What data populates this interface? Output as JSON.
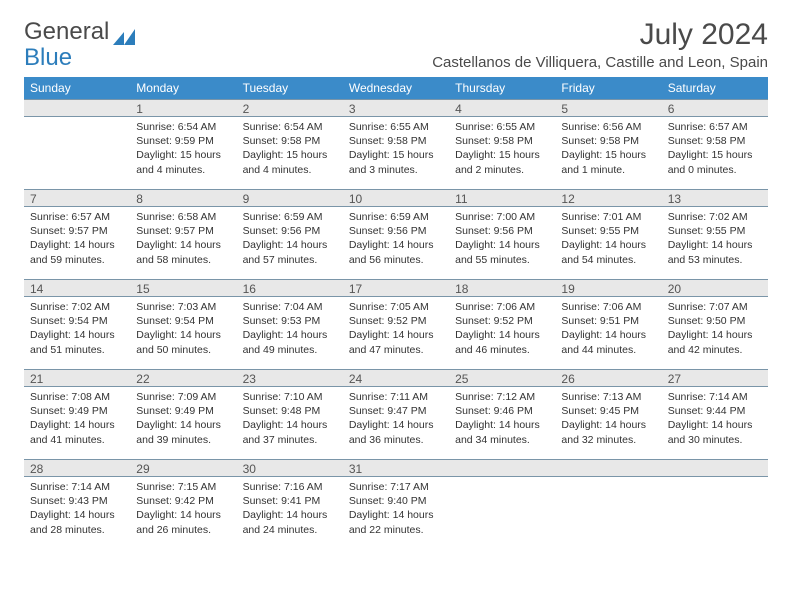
{
  "logo": {
    "part1": "General",
    "part2": "Blue"
  },
  "header": {
    "month_title": "July 2024",
    "location": "Castellanos de Villiquera, Castille and Leon, Spain"
  },
  "colors": {
    "header_bg": "#3b8bc9",
    "header_text": "#ffffff",
    "daynum_bg": "#e8e8e8",
    "border": "#7a95a8",
    "text": "#333333",
    "logo_gray": "#4a4a4a",
    "logo_blue": "#2c7dbb"
  },
  "day_names": [
    "Sunday",
    "Monday",
    "Tuesday",
    "Wednesday",
    "Thursday",
    "Friday",
    "Saturday"
  ],
  "weeks": [
    [
      {
        "n": "",
        "lines": []
      },
      {
        "n": "1",
        "lines": [
          "Sunrise: 6:54 AM",
          "Sunset: 9:59 PM",
          "Daylight: 15 hours and 4 minutes."
        ]
      },
      {
        "n": "2",
        "lines": [
          "Sunrise: 6:54 AM",
          "Sunset: 9:58 PM",
          "Daylight: 15 hours and 4 minutes."
        ]
      },
      {
        "n": "3",
        "lines": [
          "Sunrise: 6:55 AM",
          "Sunset: 9:58 PM",
          "Daylight: 15 hours and 3 minutes."
        ]
      },
      {
        "n": "4",
        "lines": [
          "Sunrise: 6:55 AM",
          "Sunset: 9:58 PM",
          "Daylight: 15 hours and 2 minutes."
        ]
      },
      {
        "n": "5",
        "lines": [
          "Sunrise: 6:56 AM",
          "Sunset: 9:58 PM",
          "Daylight: 15 hours and 1 minute."
        ]
      },
      {
        "n": "6",
        "lines": [
          "Sunrise: 6:57 AM",
          "Sunset: 9:58 PM",
          "Daylight: 15 hours and 0 minutes."
        ]
      }
    ],
    [
      {
        "n": "7",
        "lines": [
          "Sunrise: 6:57 AM",
          "Sunset: 9:57 PM",
          "Daylight: 14 hours and 59 minutes."
        ]
      },
      {
        "n": "8",
        "lines": [
          "Sunrise: 6:58 AM",
          "Sunset: 9:57 PM",
          "Daylight: 14 hours and 58 minutes."
        ]
      },
      {
        "n": "9",
        "lines": [
          "Sunrise: 6:59 AM",
          "Sunset: 9:56 PM",
          "Daylight: 14 hours and 57 minutes."
        ]
      },
      {
        "n": "10",
        "lines": [
          "Sunrise: 6:59 AM",
          "Sunset: 9:56 PM",
          "Daylight: 14 hours and 56 minutes."
        ]
      },
      {
        "n": "11",
        "lines": [
          "Sunrise: 7:00 AM",
          "Sunset: 9:56 PM",
          "Daylight: 14 hours and 55 minutes."
        ]
      },
      {
        "n": "12",
        "lines": [
          "Sunrise: 7:01 AM",
          "Sunset: 9:55 PM",
          "Daylight: 14 hours and 54 minutes."
        ]
      },
      {
        "n": "13",
        "lines": [
          "Sunrise: 7:02 AM",
          "Sunset: 9:55 PM",
          "Daylight: 14 hours and 53 minutes."
        ]
      }
    ],
    [
      {
        "n": "14",
        "lines": [
          "Sunrise: 7:02 AM",
          "Sunset: 9:54 PM",
          "Daylight: 14 hours and 51 minutes."
        ]
      },
      {
        "n": "15",
        "lines": [
          "Sunrise: 7:03 AM",
          "Sunset: 9:54 PM",
          "Daylight: 14 hours and 50 minutes."
        ]
      },
      {
        "n": "16",
        "lines": [
          "Sunrise: 7:04 AM",
          "Sunset: 9:53 PM",
          "Daylight: 14 hours and 49 minutes."
        ]
      },
      {
        "n": "17",
        "lines": [
          "Sunrise: 7:05 AM",
          "Sunset: 9:52 PM",
          "Daylight: 14 hours and 47 minutes."
        ]
      },
      {
        "n": "18",
        "lines": [
          "Sunrise: 7:06 AM",
          "Sunset: 9:52 PM",
          "Daylight: 14 hours and 46 minutes."
        ]
      },
      {
        "n": "19",
        "lines": [
          "Sunrise: 7:06 AM",
          "Sunset: 9:51 PM",
          "Daylight: 14 hours and 44 minutes."
        ]
      },
      {
        "n": "20",
        "lines": [
          "Sunrise: 7:07 AM",
          "Sunset: 9:50 PM",
          "Daylight: 14 hours and 42 minutes."
        ]
      }
    ],
    [
      {
        "n": "21",
        "lines": [
          "Sunrise: 7:08 AM",
          "Sunset: 9:49 PM",
          "Daylight: 14 hours and 41 minutes."
        ]
      },
      {
        "n": "22",
        "lines": [
          "Sunrise: 7:09 AM",
          "Sunset: 9:49 PM",
          "Daylight: 14 hours and 39 minutes."
        ]
      },
      {
        "n": "23",
        "lines": [
          "Sunrise: 7:10 AM",
          "Sunset: 9:48 PM",
          "Daylight: 14 hours and 37 minutes."
        ]
      },
      {
        "n": "24",
        "lines": [
          "Sunrise: 7:11 AM",
          "Sunset: 9:47 PM",
          "Daylight: 14 hours and 36 minutes."
        ]
      },
      {
        "n": "25",
        "lines": [
          "Sunrise: 7:12 AM",
          "Sunset: 9:46 PM",
          "Daylight: 14 hours and 34 minutes."
        ]
      },
      {
        "n": "26",
        "lines": [
          "Sunrise: 7:13 AM",
          "Sunset: 9:45 PM",
          "Daylight: 14 hours and 32 minutes."
        ]
      },
      {
        "n": "27",
        "lines": [
          "Sunrise: 7:14 AM",
          "Sunset: 9:44 PM",
          "Daylight: 14 hours and 30 minutes."
        ]
      }
    ],
    [
      {
        "n": "28",
        "lines": [
          "Sunrise: 7:14 AM",
          "Sunset: 9:43 PM",
          "Daylight: 14 hours and 28 minutes."
        ]
      },
      {
        "n": "29",
        "lines": [
          "Sunrise: 7:15 AM",
          "Sunset: 9:42 PM",
          "Daylight: 14 hours and 26 minutes."
        ]
      },
      {
        "n": "30",
        "lines": [
          "Sunrise: 7:16 AM",
          "Sunset: 9:41 PM",
          "Daylight: 14 hours and 24 minutes."
        ]
      },
      {
        "n": "31",
        "lines": [
          "Sunrise: 7:17 AM",
          "Sunset: 9:40 PM",
          "Daylight: 14 hours and 22 minutes."
        ]
      },
      {
        "n": "",
        "lines": []
      },
      {
        "n": "",
        "lines": []
      },
      {
        "n": "",
        "lines": []
      }
    ]
  ]
}
